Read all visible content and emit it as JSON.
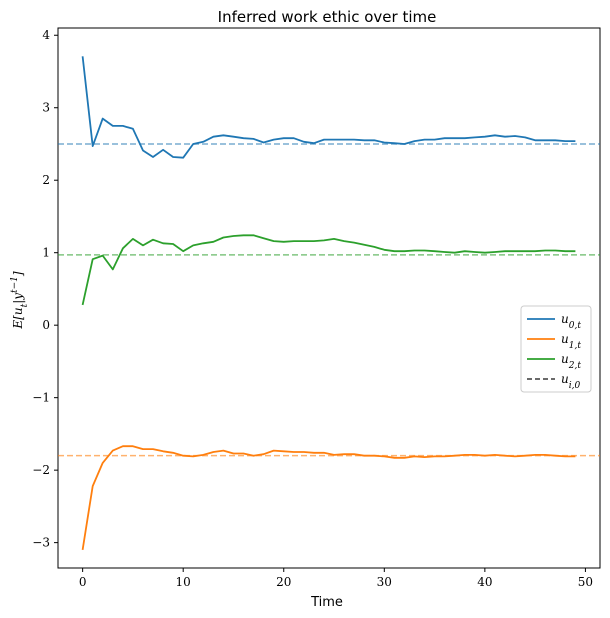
{
  "chart_data": {
    "type": "line",
    "title": "Inferred work ethic over time",
    "xlabel": "Time",
    "ylabel": "E[u_t|y^{t-1}]",
    "xlim": [
      -2.45,
      51.45
    ],
    "ylim": [
      -3.35,
      4.1
    ],
    "x_ticks": [
      0,
      10,
      20,
      30,
      40,
      50
    ],
    "x_tick_labels": [
      "0",
      "10",
      "20",
      "30",
      "40",
      "50"
    ],
    "y_ticks": [
      -3,
      -2,
      -1,
      0,
      1,
      2,
      3,
      4
    ],
    "y_tick_labels": [
      "−3",
      "−2",
      "−1",
      "0",
      "1",
      "2",
      "3",
      "4"
    ],
    "grid": false,
    "legend_position": "center-right",
    "x": [
      0,
      1,
      2,
      3,
      4,
      5,
      6,
      7,
      8,
      9,
      10,
      11,
      12,
      13,
      14,
      15,
      16,
      17,
      18,
      19,
      20,
      21,
      22,
      23,
      24,
      25,
      26,
      27,
      28,
      29,
      30,
      31,
      32,
      33,
      34,
      35,
      36,
      37,
      38,
      39,
      40,
      41,
      42,
      43,
      44,
      45,
      46,
      47,
      48,
      49
    ],
    "series": [
      {
        "name": "u_{0,t}",
        "color": "#1f77b4",
        "values": [
          3.71,
          2.47,
          2.85,
          2.75,
          2.75,
          2.71,
          2.41,
          2.32,
          2.42,
          2.32,
          2.31,
          2.5,
          2.53,
          2.6,
          2.62,
          2.6,
          2.58,
          2.57,
          2.52,
          2.56,
          2.58,
          2.58,
          2.53,
          2.51,
          2.56,
          2.56,
          2.56,
          2.56,
          2.55,
          2.55,
          2.52,
          2.51,
          2.5,
          2.54,
          2.56,
          2.56,
          2.58,
          2.58,
          2.58,
          2.59,
          2.6,
          2.62,
          2.6,
          2.61,
          2.59,
          2.55,
          2.55,
          2.55,
          2.54,
          2.54
        ]
      },
      {
        "name": "u_{1,t}",
        "color": "#ff7f0e",
        "values": [
          -3.1,
          -2.22,
          -1.9,
          -1.73,
          -1.67,
          -1.67,
          -1.71,
          -1.71,
          -1.74,
          -1.76,
          -1.8,
          -1.81,
          -1.79,
          -1.75,
          -1.73,
          -1.77,
          -1.77,
          -1.8,
          -1.78,
          -1.73,
          -1.74,
          -1.75,
          -1.75,
          -1.76,
          -1.76,
          -1.79,
          -1.78,
          -1.78,
          -1.8,
          -1.8,
          -1.81,
          -1.83,
          -1.83,
          -1.81,
          -1.82,
          -1.81,
          -1.81,
          -1.8,
          -1.79,
          -1.79,
          -1.8,
          -1.79,
          -1.8,
          -1.81,
          -1.8,
          -1.79,
          -1.79,
          -1.8,
          -1.81,
          -1.81
        ]
      },
      {
        "name": "u_{2,t}",
        "color": "#2ca02c",
        "values": [
          0.28,
          0.91,
          0.96,
          0.77,
          1.06,
          1.19,
          1.1,
          1.18,
          1.13,
          1.12,
          1.02,
          1.1,
          1.13,
          1.15,
          1.21,
          1.23,
          1.24,
          1.24,
          1.2,
          1.16,
          1.15,
          1.16,
          1.16,
          1.16,
          1.17,
          1.19,
          1.16,
          1.14,
          1.11,
          1.08,
          1.04,
          1.02,
          1.02,
          1.03,
          1.03,
          1.02,
          1.01,
          1.0,
          1.02,
          1.01,
          1.0,
          1.01,
          1.02,
          1.02,
          1.02,
          1.02,
          1.03,
          1.03,
          1.02,
          1.02
        ]
      }
    ],
    "reference_lines": [
      {
        "value": 2.5,
        "color": "#1f77b4"
      },
      {
        "value": 0.97,
        "color": "#2ca02c"
      },
      {
        "value": -1.8,
        "color": "#ff7f0e"
      }
    ],
    "legend": [
      {
        "label": "u_{0,t}",
        "color": "#1f77b4",
        "style": "solid"
      },
      {
        "label": "u_{1,t}",
        "color": "#ff7f0e",
        "style": "solid"
      },
      {
        "label": "u_{2,t}",
        "color": "#2ca02c",
        "style": "solid"
      },
      {
        "label": "u_{i,0}",
        "color": "#555555",
        "style": "dashed"
      }
    ]
  }
}
